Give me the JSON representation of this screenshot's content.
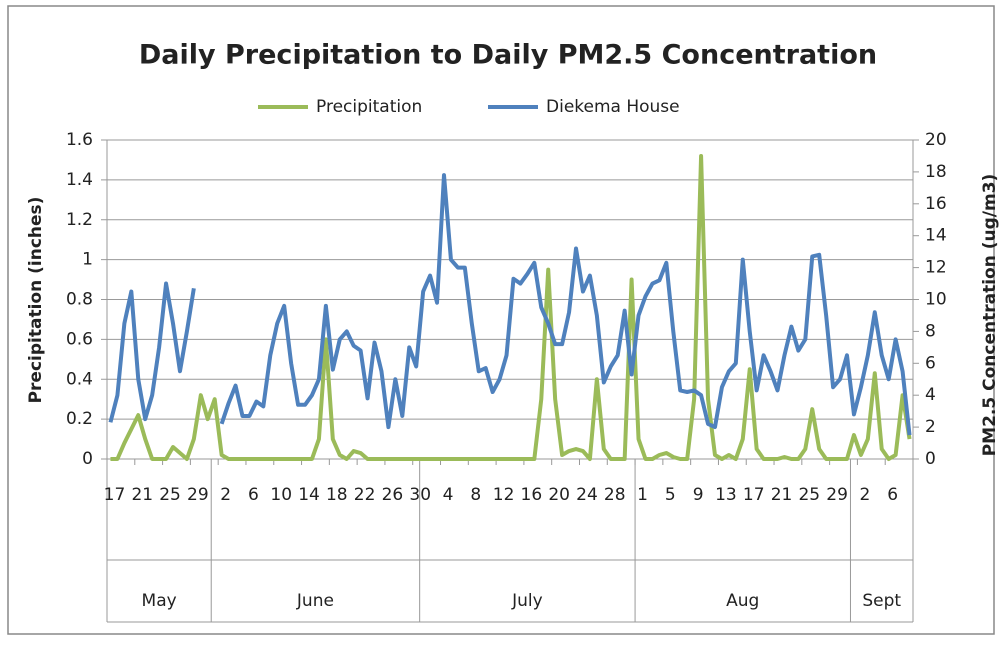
{
  "chart_data": {
    "type": "line",
    "title": "Daily Precipitation to Daily PM2.5 Concentration",
    "y_label": "Precipitation (inches)",
    "y2_label": "PM2.5 Concentration (ug/m3)",
    "categories": [
      "17",
      null,
      null,
      null,
      "21",
      null,
      null,
      null,
      "25",
      null,
      null,
      null,
      "29",
      null,
      null,
      null,
      "2",
      null,
      null,
      null,
      "6",
      null,
      null,
      null,
      "10",
      null,
      null,
      null,
      "14",
      null,
      null,
      null,
      "18",
      null,
      null,
      null,
      "22",
      null,
      null,
      null,
      "26",
      null,
      null,
      null,
      "30",
      null,
      null,
      null,
      "4",
      null,
      null,
      null,
      "8",
      null,
      null,
      null,
      "12",
      null,
      null,
      null,
      "16",
      null,
      null,
      null,
      "20",
      null,
      null,
      null,
      "24",
      null,
      null,
      null,
      "28",
      null,
      null,
      null,
      "1",
      null,
      null,
      null,
      "5",
      null,
      null,
      null,
      "9",
      null,
      null,
      null,
      "13",
      null,
      null,
      null,
      "17",
      null,
      null,
      null,
      "21",
      null,
      null,
      null,
      "25",
      null,
      null,
      null,
      "29",
      null,
      null,
      null,
      "2",
      null,
      null,
      null,
      "6",
      null,
      null,
      null
    ],
    "x_groups": [
      {
        "label": "May",
        "span": 15
      },
      {
        "label": "June",
        "span": 30
      },
      {
        "label": "July",
        "span": 31
      },
      {
        "label": "Aug",
        "span": 31
      },
      {
        "label": "Sept",
        "span": 9
      }
    ],
    "series": [
      {
        "name": "Precipitation",
        "color": "#9bbb59",
        "axis": "y",
        "values": [
          0,
          0,
          0.08,
          0.15,
          0.22,
          0.1,
          0,
          0,
          0,
          0.06,
          0.03,
          0,
          0.1,
          0.32,
          0.2,
          0.3,
          0.02,
          0,
          0,
          0,
          0,
          0,
          0,
          0,
          0,
          0,
          0,
          0,
          0,
          0,
          0.1,
          0.6,
          0.1,
          0.02,
          0,
          0.04,
          0.03,
          0,
          0,
          0,
          0,
          0,
          0,
          0,
          0,
          0,
          0,
          0,
          0,
          0,
          0,
          0,
          0,
          0,
          0,
          0,
          0,
          0,
          0,
          0,
          0,
          0,
          0.3,
          0.95,
          0.3,
          0.02,
          0.04,
          0.05,
          0.04,
          0,
          0.4,
          0.05,
          0,
          0,
          0,
          0.9,
          0.1,
          0,
          0,
          0.02,
          0.03,
          0.01,
          0,
          0,
          0.3,
          1.52,
          0.3,
          0.02,
          0,
          0.02,
          0,
          0.1,
          0.45,
          0.05,
          0,
          0,
          0,
          0.01,
          0,
          0,
          0.05,
          0.25,
          0.05,
          0,
          0,
          0,
          0,
          0.12,
          0.02,
          0.1,
          0.43,
          0.05,
          0,
          0.02,
          0.32,
          0.1
        ]
      },
      {
        "name": "Diekema House",
        "color": "#4f81bd",
        "axis": "y2",
        "values": [
          2.3,
          4,
          8.5,
          10.5,
          5,
          2.5,
          4,
          7,
          11,
          8.5,
          5.5,
          8,
          10.7,
          null,
          null,
          null,
          2.2,
          3.5,
          4.6,
          2.7,
          2.7,
          3.6,
          3.3,
          6.5,
          8.5,
          9.6,
          6,
          3.4,
          3.4,
          4,
          5,
          9.6,
          5.6,
          7.5,
          8,
          7.1,
          6.8,
          3.8,
          7.3,
          5.5,
          2,
          5,
          2.7,
          7,
          5.8,
          10.5,
          11.5,
          9.8,
          17.8,
          12.5,
          12,
          12,
          8.5,
          5.5,
          5.7,
          4.2,
          5,
          6.5,
          11.3,
          11,
          11.6,
          12.3,
          9.5,
          8.5,
          7.2,
          7.2,
          9.2,
          13.2,
          10.5,
          11.5,
          9,
          4.8,
          5.8,
          6.5,
          9.3,
          5.3,
          9,
          10.2,
          11,
          11.2,
          12.3,
          8,
          4.3,
          4.2,
          4.3,
          4,
          2.2,
          2,
          4.5,
          5.5,
          6,
          12.5,
          8,
          4.3,
          6.5,
          5.5,
          4.3,
          6.5,
          8.3,
          6.8,
          7.5,
          12.7,
          12.8,
          9,
          4.5,
          5,
          6.5,
          2.8,
          4.5,
          6.5,
          9.2,
          6.5,
          5,
          7.5,
          5.5,
          1.5
        ]
      }
    ],
    "ylim": [
      0,
      1.6
    ],
    "yticks": [
      0,
      0.2,
      0.4,
      0.6,
      0.8,
      1,
      1.2,
      1.4,
      1.6
    ],
    "y2lim": [
      0,
      20
    ],
    "y2ticks": [
      0,
      2,
      4,
      6,
      8,
      10,
      12,
      14,
      16,
      18,
      20
    ],
    "grid": true,
    "legend": "top"
  }
}
